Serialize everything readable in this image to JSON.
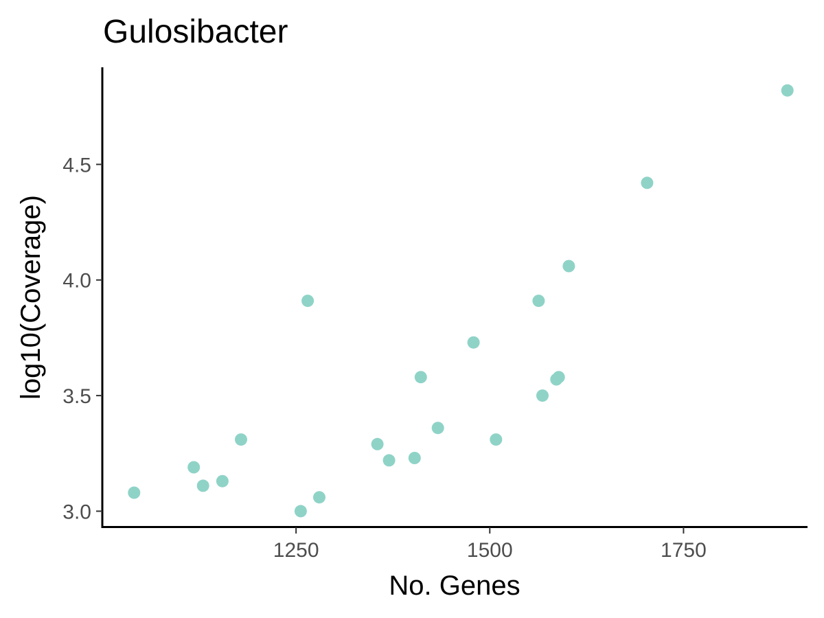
{
  "chart_data": {
    "type": "scatter",
    "title": "Gulosibacter",
    "xlabel": "No. Genes",
    "ylabel": "log10(Coverage)",
    "xlim": [
      1000,
      1910
    ],
    "ylim": [
      2.93,
      4.92
    ],
    "x_ticks": [
      1250,
      1500,
      1750
    ],
    "x_tick_labels": [
      "1250",
      "1500",
      "1750"
    ],
    "y_ticks": [
      3.0,
      3.5,
      4.0,
      4.5
    ],
    "y_tick_labels": [
      "3.0",
      "3.5",
      "4.0",
      "4.5"
    ],
    "grid": false,
    "legend": "none",
    "point_color": "#8fd3c7",
    "series": [
      {
        "x": [
          1041,
          1118,
          1130,
          1155,
          1179,
          1256,
          1265,
          1280,
          1355,
          1370,
          1403,
          1411,
          1433,
          1479,
          1508,
          1563,
          1568,
          1586,
          1589,
          1602,
          1703,
          1884
        ],
        "y": [
          3.08,
          3.19,
          3.11,
          3.13,
          3.31,
          3.0,
          3.91,
          3.06,
          3.29,
          3.22,
          3.23,
          3.58,
          3.36,
          3.73,
          3.31,
          3.91,
          3.5,
          3.57,
          3.58,
          4.06,
          4.42,
          4.82
        ]
      }
    ]
  }
}
